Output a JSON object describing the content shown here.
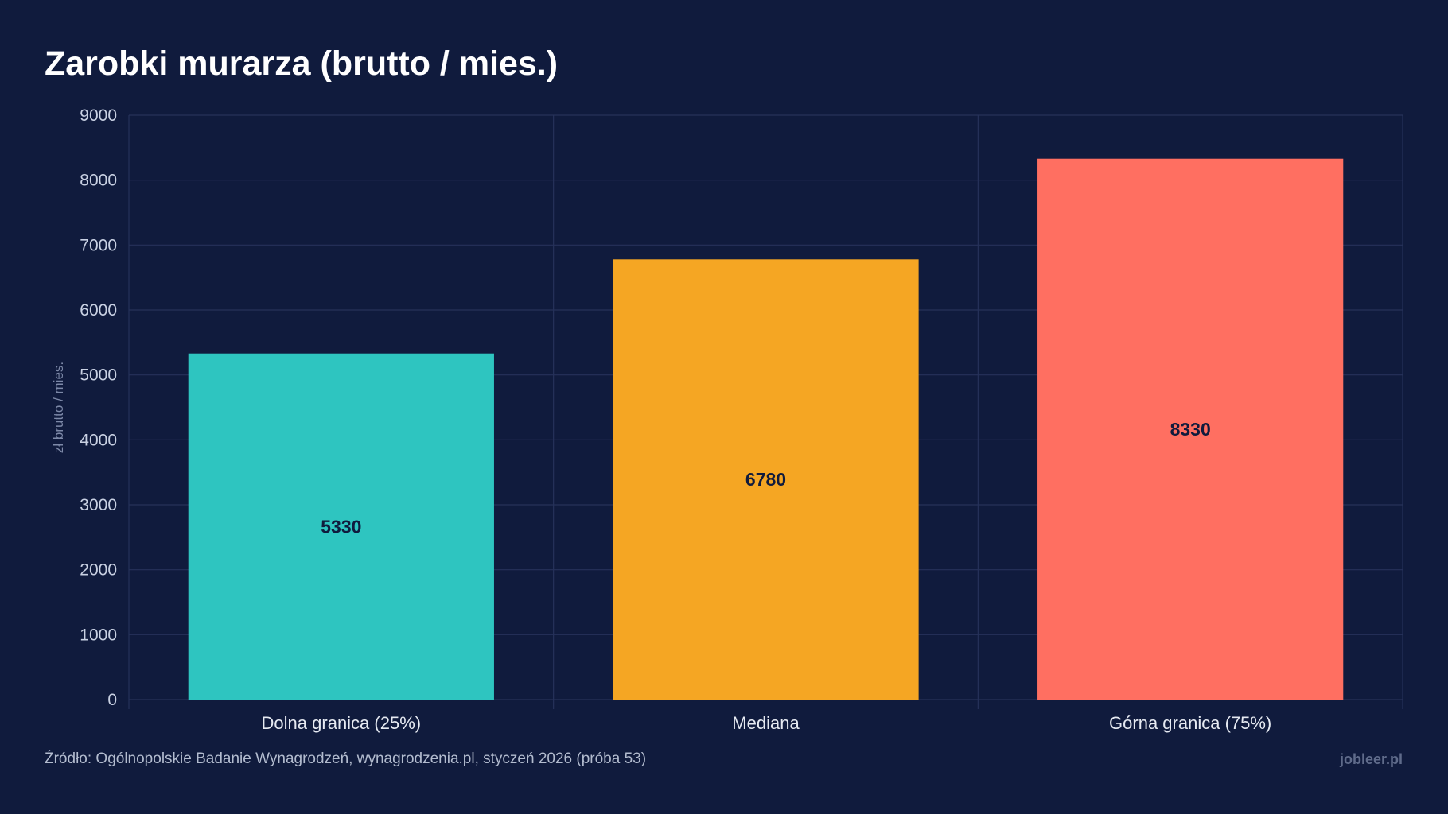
{
  "title": "Zarobki murarza (brutto / mies.)",
  "source": "Źródło: Ogólnopolskie Badanie Wynagrodzeń, wynagrodzenia.pl, styczeń 2026 (próba 53)",
  "brand": "jobleer.pl",
  "colors": {
    "background": "#101b3d",
    "grid": "#26325a",
    "bars": [
      "#2ec5c0",
      "#f5a623",
      "#ff6f61"
    ],
    "bar_label": "#101b3d"
  },
  "chart_data": {
    "type": "bar",
    "categories": [
      "Dolna granica (25%)",
      "Mediana",
      "Górna granica (75%)"
    ],
    "values": [
      5330,
      6780,
      8330
    ],
    "data_labels": [
      "5330",
      "6780",
      "8330"
    ],
    "title": "Zarobki murarza (brutto / mies.)",
    "xlabel": "",
    "ylabel": "zł brutto / mies.",
    "ylim": [
      0,
      9000
    ],
    "yticks": [
      0,
      1000,
      2000,
      3000,
      4000,
      5000,
      6000,
      7000,
      8000,
      9000
    ],
    "grid": true,
    "legend": "none"
  }
}
